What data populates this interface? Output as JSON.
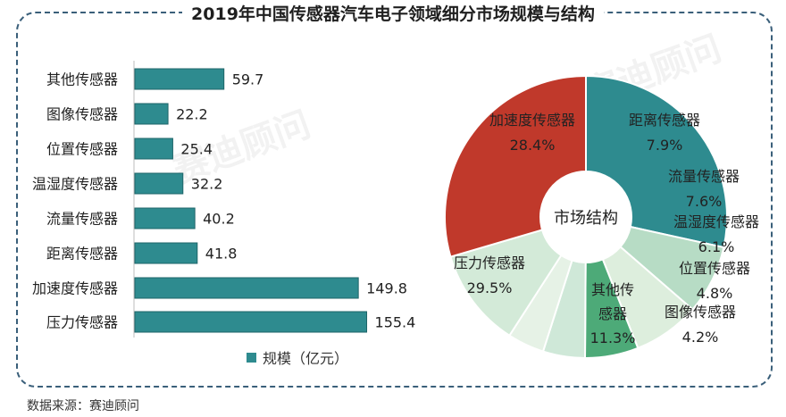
{
  "title": "2019年中国传感器汽车电子领域细分市场规模与结构",
  "source": "数据来源：赛迪顾问",
  "watermark": "赛迪顾问",
  "colors": {
    "bar": "#2e8b8f",
    "frame": "#3a5f7a"
  },
  "chart_data": [
    {
      "type": "bar",
      "orientation": "horizontal",
      "categories": [
        "其他传感器",
        "图像传感器",
        "位置传感器",
        "温湿度传感器",
        "流量传感器",
        "距离传感器",
        "加速度传感器",
        "压力传感器"
      ],
      "values": [
        59.7,
        22.2,
        25.4,
        32.2,
        40.2,
        41.8,
        149.8,
        155.4
      ],
      "value_labels": [
        "59.7",
        "22.2",
        "25.4",
        "32.2",
        "40.2",
        "41.8",
        "149.8",
        "155.4"
      ],
      "legend": "规模（亿元）",
      "legend_position": "bottom"
    },
    {
      "type": "pie",
      "donut": true,
      "center_label": "市场结构",
      "slices": [
        {
          "label": "加速度传感器",
          "value": 28.4,
          "value_label": "28.4%",
          "color": "#2e8b8f"
        },
        {
          "label": "距离传感器",
          "value": 7.9,
          "value_label": "7.9%",
          "color": "#b7dcc5"
        },
        {
          "label": "流量传感器",
          "value": 7.6,
          "value_label": "7.6%",
          "color": "#ddeedd"
        },
        {
          "label": "温湿度传感器",
          "value": 6.1,
          "value_label": "6.1%",
          "color": "#4daa78"
        },
        {
          "label": "位置传感器",
          "value": 4.8,
          "value_label": "4.8%",
          "color": "#cfe8d8"
        },
        {
          "label": "图像传感器",
          "value": 4.2,
          "value_label": "4.2%",
          "color": "#e6f2e6"
        },
        {
          "label": "其他传感器",
          "value": 11.3,
          "value_label": "11.3%",
          "color": "#d3ead8"
        },
        {
          "label": "压力传感器",
          "value": 29.5,
          "value_label": "29.5%",
          "color": "#c0392b"
        }
      ]
    }
  ]
}
